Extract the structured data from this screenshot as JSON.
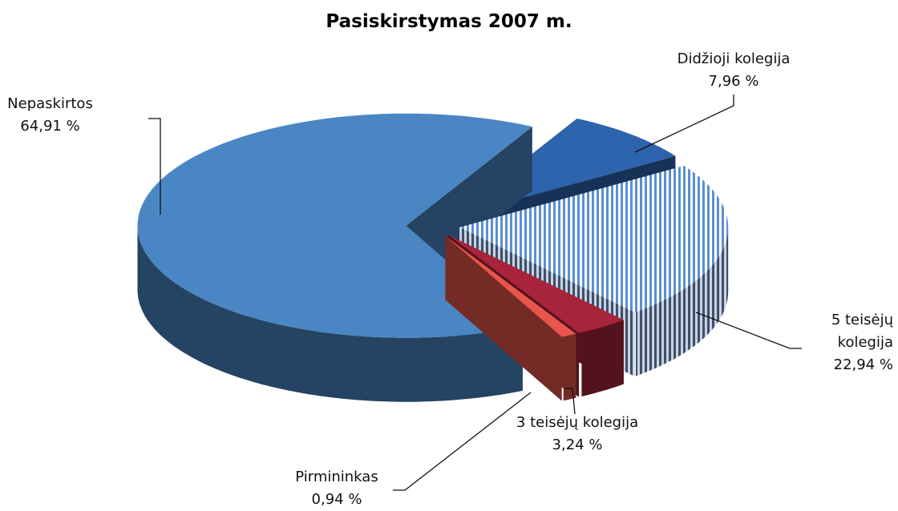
{
  "chart_data": {
    "type": "pie3d",
    "title": "Pasiskirstymas 2007 m.",
    "categories": [
      "Didžioji kolegija",
      "5 teisėjų kolegija",
      "3 teisėjų kolegija",
      "Pirmininkas",
      "Nepaskirtos"
    ],
    "values": [
      7.96,
      22.94,
      3.24,
      0.94,
      64.91
    ],
    "value_labels": [
      "7,96 %",
      "22,94 %",
      "3,24 %",
      "0,94 %",
      "64,91 %"
    ],
    "colors": [
      "#2e63ad",
      "#c6dcf3",
      "#a8243a",
      "#e8554a",
      "#4a86c4"
    ],
    "patterns": [
      null,
      "stripes",
      null,
      null,
      null
    ]
  }
}
